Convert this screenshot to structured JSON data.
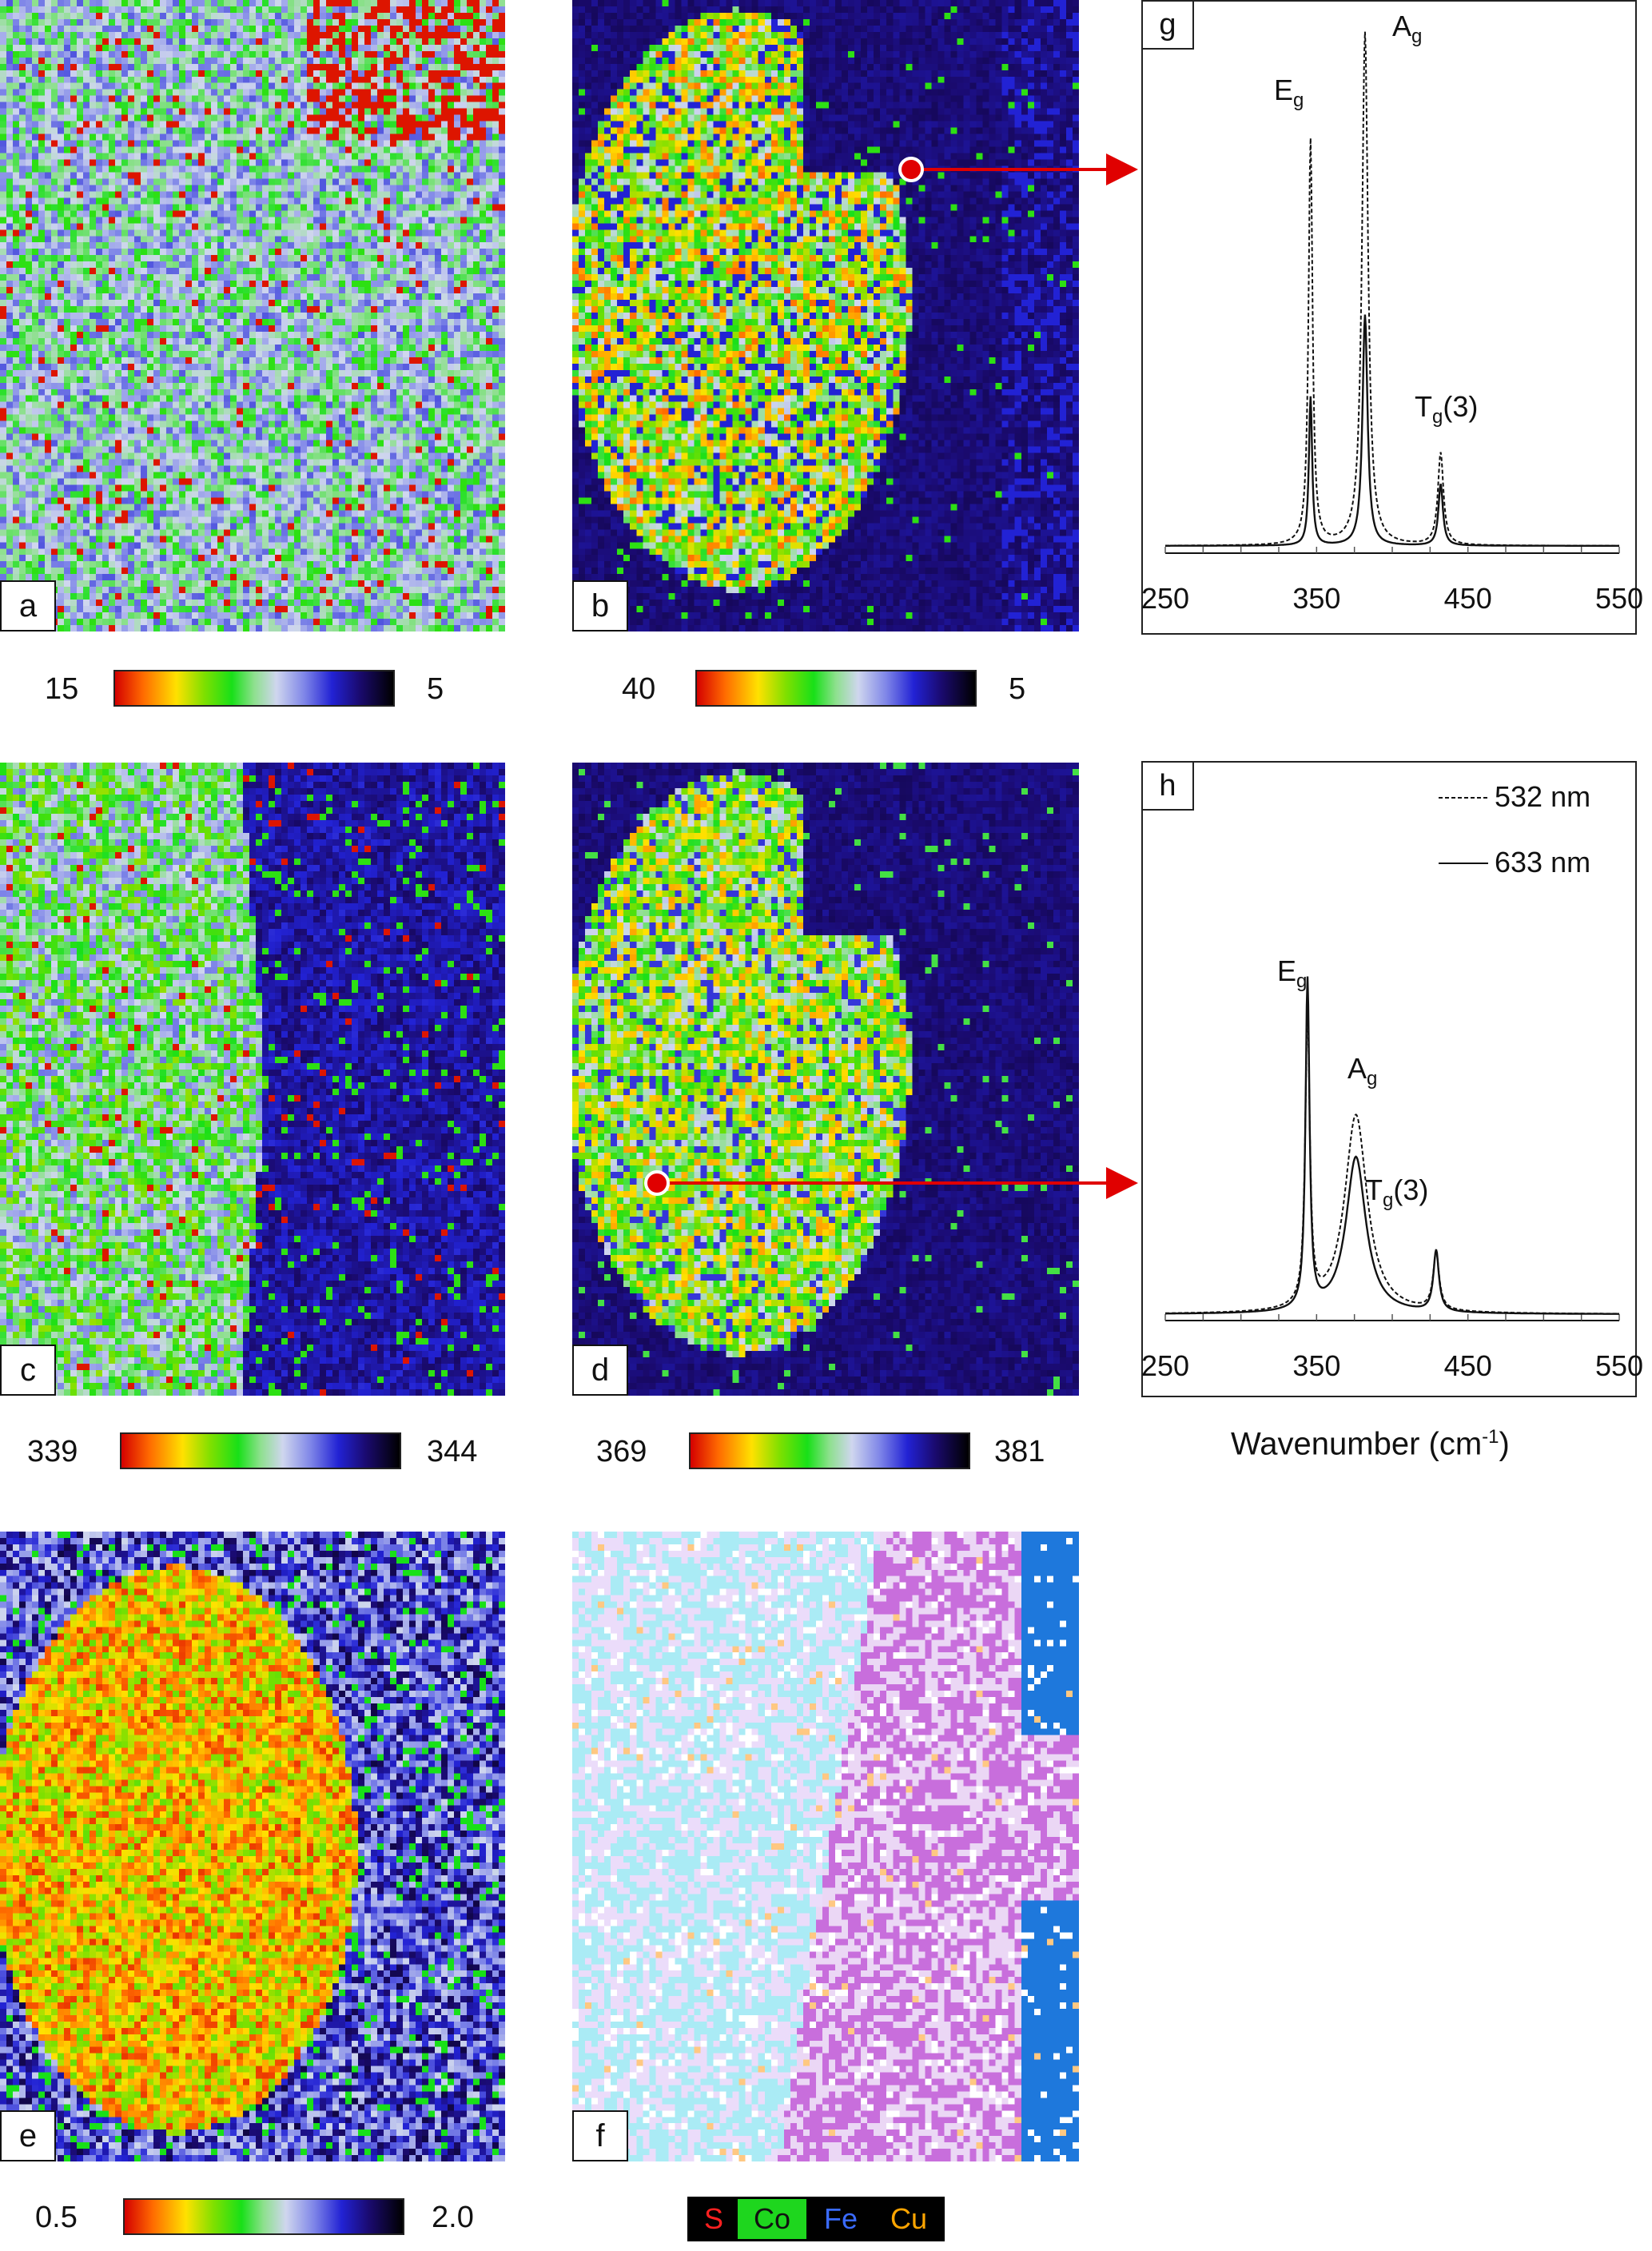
{
  "panels": {
    "a": {
      "label": "a",
      "scale_min": "15",
      "scale_max": "5"
    },
    "b": {
      "label": "b",
      "scale_min": "40",
      "scale_max": "5"
    },
    "c": {
      "label": "c",
      "scale_min": "339",
      "scale_max": "344"
    },
    "d": {
      "label": "d",
      "scale_min": "369",
      "scale_max": "381"
    },
    "e": {
      "label": "e",
      "scale_min": "0.5",
      "scale_max": "2.0"
    },
    "f": {
      "label": "f"
    }
  },
  "element_legend": [
    {
      "symbol": "S",
      "color": "#ff0000"
    },
    {
      "symbol": "Co",
      "color": "#22e022"
    },
    {
      "symbol": "Fe",
      "color": "#2255ff"
    },
    {
      "symbol": "Cu",
      "color": "#ffa500"
    }
  ],
  "colors": {
    "marker": "#e00000",
    "arrow": "#e00000"
  },
  "chart_data": [
    {
      "type": "line",
      "panel": "g",
      "x_ticks": [
        "250",
        "350",
        "450",
        "550"
      ],
      "xlim": [
        250,
        550
      ],
      "peaks": [
        {
          "name": "Eg",
          "base": "E",
          "sub": "g",
          "x": 346
        },
        {
          "name": "Ag",
          "base": "A",
          "sub": "g",
          "x": 382
        },
        {
          "name": "Tg(3)",
          "base": "T",
          "sub": "g",
          "suffix": "(3)",
          "x": 432
        }
      ],
      "series": [
        {
          "name": "532 nm",
          "style": "dashed",
          "peaks": [
            {
              "x": 346,
              "height": 0.79,
              "width": 1.6
            },
            {
              "x": 382,
              "height": 1.0,
              "width": 2.4
            },
            {
              "x": 432,
              "height": 0.18,
              "width": 2.2
            }
          ]
        },
        {
          "name": "633 nm",
          "style": "solid",
          "peaks": [
            {
              "x": 346,
              "height": 0.29,
              "width": 1.3
            },
            {
              "x": 382,
              "height": 0.45,
              "width": 2.0
            },
            {
              "x": 432,
              "height": 0.12,
              "width": 1.8
            }
          ]
        }
      ]
    },
    {
      "type": "line",
      "panel": "h",
      "x_ticks": [
        "250",
        "350",
        "450",
        "550"
      ],
      "xlim": [
        250,
        550
      ],
      "legend": [
        "532 nm",
        "633 nm"
      ],
      "peaks": [
        {
          "name": "Eg",
          "base": "E",
          "sub": "g",
          "x": 344
        },
        {
          "name": "Ag",
          "base": "A",
          "sub": "g",
          "x": 376
        },
        {
          "name": "Tg(3)",
          "base": "T",
          "sub": "g",
          "suffix": "(3)",
          "x": 429
        }
      ],
      "series": [
        {
          "name": "532 nm",
          "style": "dashed",
          "peaks": [
            {
              "x": 344,
              "height": 0.76,
              "width": 1.8
            },
            {
              "x": 376,
              "height": 0.52,
              "width": 9.0
            },
            {
              "x": 429,
              "height": 0.15,
              "width": 2.4
            }
          ]
        },
        {
          "name": "633 nm",
          "style": "solid",
          "peaks": [
            {
              "x": 344,
              "height": 0.86,
              "width": 1.6
            },
            {
              "x": 376,
              "height": 0.41,
              "width": 8.0
            },
            {
              "x": 429,
              "height": 0.16,
              "width": 2.2
            }
          ]
        }
      ]
    }
  ],
  "x_axis_label": "Wavenumber (cm",
  "x_axis_label_sup": "-1",
  "x_axis_label_end": ")"
}
